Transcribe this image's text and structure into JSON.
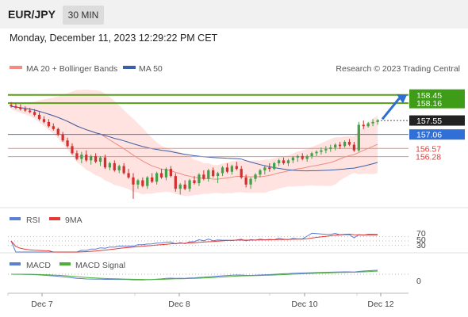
{
  "header": {
    "symbol": "EUR/JPY",
    "timeframe": "30 MIN"
  },
  "datetime": "Monday, December 11, 2023 12:29:22 PM CET",
  "legend": {
    "ma20": "MA 20 + Bollinger Bands",
    "ma50": "MA 50",
    "credit": "Research © 2023 Trading Central"
  },
  "colors": {
    "ma20": "#f28b82",
    "ma50": "#3c5fa8",
    "up": "#43a047",
    "down": "#d32f2f",
    "resistance": "#5a9e1a",
    "support": "#f28b82",
    "pivot": "#4a78c8",
    "rsi": "#5b7fd1",
    "rsi_ma": "#e53935",
    "macd": "#5b7fd1",
    "macd_signal": "#4caf3a"
  },
  "chart_data": [
    {
      "type": "candlestick",
      "title": "EUR/JPY",
      "timeframe": "30 MIN",
      "ylim": [
        154.6,
        159.0
      ],
      "x_ticks": [
        "Dec 7",
        "Dec 8",
        "Dec 10",
        "Dec 12"
      ],
      "series": [
        {
          "name": "MA 20 + Bollinger Bands",
          "kind": "ma_band"
        },
        {
          "name": "MA 50",
          "kind": "ma"
        }
      ],
      "levels": [
        {
          "value": 158.45,
          "label": "158.45",
          "kind": "target",
          "color": "#3e9c18"
        },
        {
          "value": 158.16,
          "label": "158.16",
          "kind": "resistance",
          "color": "#3e9c18"
        },
        {
          "value": 157.55,
          "label": "157.55",
          "kind": "last_price",
          "color": "#222222"
        },
        {
          "value": 157.06,
          "label": "157.06",
          "kind": "pivot",
          "color": "#2f6fd6"
        },
        {
          "value": 156.57,
          "label": "156.57",
          "kind": "support",
          "color": "#e53935"
        },
        {
          "value": 156.28,
          "label": "156.28",
          "kind": "support",
          "color": "#e53935"
        }
      ],
      "candles": [
        [
          158.1,
          158.2,
          158.0,
          158.05
        ],
        [
          158.05,
          158.15,
          157.95,
          158.0
        ],
        [
          158.0,
          158.12,
          157.9,
          157.95
        ],
        [
          157.95,
          158.05,
          157.85,
          157.9
        ],
        [
          157.9,
          158.0,
          157.8,
          157.85
        ],
        [
          157.85,
          157.95,
          157.7,
          157.75
        ],
        [
          157.75,
          157.85,
          157.55,
          157.6
        ],
        [
          157.6,
          157.7,
          157.45,
          157.5
        ],
        [
          157.5,
          157.6,
          157.3,
          157.35
        ],
        [
          157.35,
          157.45,
          157.2,
          157.25
        ],
        [
          157.25,
          157.3,
          157.0,
          157.05
        ],
        [
          157.05,
          157.15,
          156.8,
          156.85
        ],
        [
          156.85,
          156.95,
          156.6,
          156.65
        ],
        [
          156.65,
          156.75,
          156.35,
          156.4
        ],
        [
          156.4,
          156.5,
          156.15,
          156.2
        ],
        [
          156.2,
          156.45,
          156.05,
          156.35
        ],
        [
          156.35,
          156.5,
          156.1,
          156.15
        ],
        [
          156.15,
          156.35,
          156.0,
          156.3
        ],
        [
          156.3,
          156.4,
          156.05,
          156.1
        ],
        [
          156.1,
          156.3,
          155.95,
          156.25
        ],
        [
          156.25,
          156.35,
          155.85,
          155.9
        ],
        [
          155.9,
          156.1,
          155.8,
          156.05
        ],
        [
          156.05,
          156.15,
          155.75,
          155.8
        ],
        [
          155.8,
          156.0,
          155.7,
          155.95
        ],
        [
          155.95,
          156.05,
          155.65,
          155.7
        ],
        [
          155.7,
          155.85,
          155.5,
          155.55
        ],
        [
          155.55,
          155.7,
          154.8,
          155.3
        ],
        [
          155.3,
          155.5,
          155.15,
          155.45
        ],
        [
          155.45,
          155.55,
          155.2,
          155.25
        ],
        [
          155.25,
          155.6,
          155.15,
          155.55
        ],
        [
          155.55,
          155.7,
          155.35,
          155.4
        ],
        [
          155.4,
          155.75,
          155.3,
          155.7
        ],
        [
          155.7,
          155.85,
          155.5,
          155.55
        ],
        [
          155.55,
          155.9,
          155.45,
          155.85
        ],
        [
          155.85,
          155.95,
          155.55,
          155.6
        ],
        [
          155.6,
          155.7,
          155.05,
          155.15
        ],
        [
          155.15,
          155.35,
          154.95,
          155.3
        ],
        [
          155.3,
          155.45,
          155.1,
          155.15
        ],
        [
          155.15,
          155.5,
          155.05,
          155.45
        ],
        [
          155.45,
          155.6,
          155.3,
          155.35
        ],
        [
          155.35,
          155.7,
          155.25,
          155.65
        ],
        [
          155.65,
          155.8,
          155.45,
          155.5
        ],
        [
          155.5,
          155.85,
          155.4,
          155.8
        ],
        [
          155.8,
          155.9,
          155.55,
          155.6
        ],
        [
          155.6,
          155.75,
          155.35,
          155.7
        ],
        [
          155.7,
          155.95,
          155.6,
          155.9
        ],
        [
          155.9,
          156.05,
          155.7,
          155.75
        ],
        [
          155.75,
          156.0,
          155.65,
          155.95
        ],
        [
          155.95,
          156.1,
          155.8,
          155.85
        ],
        [
          155.85,
          155.95,
          155.5,
          155.55
        ],
        [
          155.55,
          155.65,
          155.2,
          155.3
        ],
        [
          155.3,
          155.55,
          155.15,
          155.5
        ],
        [
          155.5,
          155.7,
          155.4,
          155.65
        ],
        [
          155.65,
          155.85,
          155.55,
          155.8
        ],
        [
          155.8,
          155.95,
          155.65,
          155.9
        ],
        [
          155.9,
          156.05,
          155.75,
          155.85
        ],
        [
          155.85,
          156.1,
          155.8,
          156.05
        ],
        [
          156.05,
          156.2,
          155.95,
          156.15
        ],
        [
          156.15,
          156.25,
          156.0,
          156.05
        ],
        [
          156.05,
          156.2,
          155.95,
          156.15
        ],
        [
          156.15,
          156.3,
          156.05,
          156.25
        ],
        [
          156.25,
          156.35,
          156.1,
          156.3
        ],
        [
          156.3,
          156.4,
          156.15,
          156.2
        ],
        [
          156.2,
          156.35,
          156.1,
          156.3
        ],
        [
          156.3,
          156.45,
          156.2,
          156.4
        ],
        [
          156.4,
          156.5,
          156.3,
          156.45
        ],
        [
          156.45,
          156.6,
          156.35,
          156.5
        ],
        [
          156.5,
          156.65,
          156.4,
          156.55
        ],
        [
          156.55,
          156.7,
          156.45,
          156.6
        ],
        [
          156.6,
          156.75,
          156.5,
          156.7
        ],
        [
          156.7,
          156.8,
          156.55,
          156.65
        ],
        [
          156.65,
          156.85,
          156.6,
          156.8
        ],
        [
          156.8,
          156.9,
          156.65,
          156.7
        ],
        [
          156.7,
          156.8,
          156.45,
          156.5
        ],
        [
          156.5,
          157.5,
          156.45,
          157.4
        ],
        [
          157.4,
          157.55,
          157.25,
          157.35
        ],
        [
          157.35,
          157.5,
          157.3,
          157.45
        ],
        [
          157.45,
          157.6,
          157.35,
          157.5
        ],
        [
          157.5,
          157.6,
          157.4,
          157.55
        ]
      ]
    },
    {
      "type": "line",
      "title": "RSI",
      "series": [
        {
          "name": "RSI"
        },
        {
          "name": "9MA"
        }
      ],
      "y_ticks": [
        70,
        50,
        30
      ],
      "ylim": [
        0,
        100
      ]
    },
    {
      "type": "line",
      "title": "MACD",
      "series": [
        {
          "name": "MACD"
        },
        {
          "name": "MACD Signal"
        }
      ],
      "y_ticks": [
        0
      ]
    }
  ]
}
